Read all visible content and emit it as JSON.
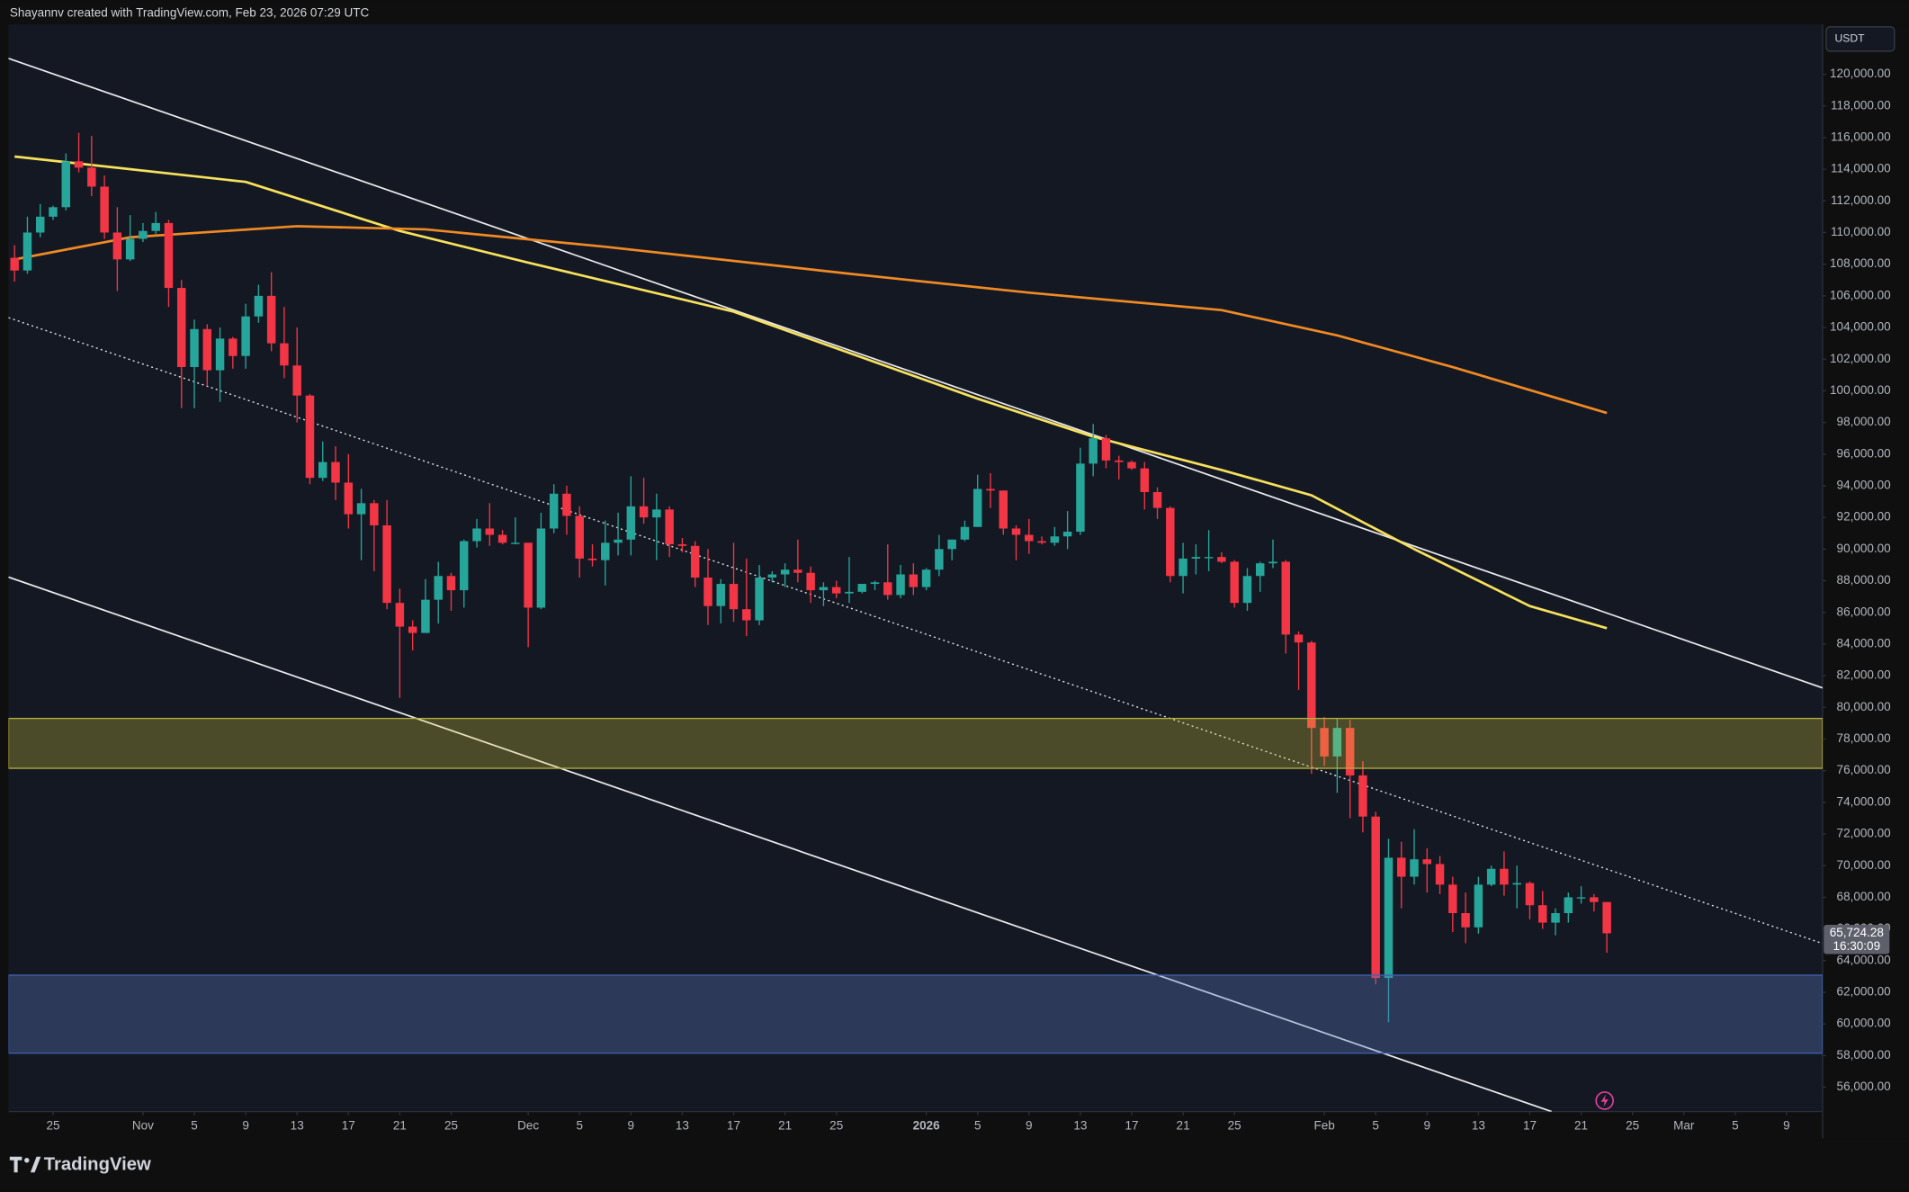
{
  "header": "Shayannv created with TradingView.com, Feb 23, 2026 07:29 UTC",
  "footer": "TradingView",
  "chart_data": {
    "type": "candlestick",
    "currency": "USDT",
    "up_color": "#26a69a",
    "down_color": "#f23645",
    "ylim": [
      54460,
      123150
    ],
    "xlim": [
      -0.47,
      140.8
    ],
    "yticks": [
      {
        "value": 56000,
        "label": "56,000.00"
      },
      {
        "value": 58000,
        "label": "58,000.00"
      },
      {
        "value": 60000,
        "label": "60,000.00"
      },
      {
        "value": 62000,
        "label": "62,000.00"
      },
      {
        "value": 64000,
        "label": "64,000.00"
      },
      {
        "value": 66000,
        "label": "66,000.00"
      },
      {
        "value": 68000,
        "label": "68,000.00"
      },
      {
        "value": 70000,
        "label": "70,000.00"
      },
      {
        "value": 72000,
        "label": "72,000.00"
      },
      {
        "value": 74000,
        "label": "74,000.00"
      },
      {
        "value": 76000,
        "label": "76,000.00"
      },
      {
        "value": 78000,
        "label": "78,000.00"
      },
      {
        "value": 80000,
        "label": "80,000.00"
      },
      {
        "value": 82000,
        "label": "82,000.00"
      },
      {
        "value": 84000,
        "label": "84,000.00"
      },
      {
        "value": 86000,
        "label": "86,000.00"
      },
      {
        "value": 88000,
        "label": "88,000.00"
      },
      {
        "value": 90000,
        "label": "90,000.00"
      },
      {
        "value": 92000,
        "label": "92,000.00"
      },
      {
        "value": 94000,
        "label": "94,000.00"
      },
      {
        "value": 96000,
        "label": "96,000.00"
      },
      {
        "value": 98000,
        "label": "98,000.00"
      },
      {
        "value": 100000,
        "label": "100,000.00"
      },
      {
        "value": 102000,
        "label": "102,000.00"
      },
      {
        "value": 104000,
        "label": "104,000.00"
      },
      {
        "value": 106000,
        "label": "106,000.00"
      },
      {
        "value": 108000,
        "label": "108,000.00"
      },
      {
        "value": 110000,
        "label": "110,000.00"
      },
      {
        "value": 112000,
        "label": "112,000.00"
      },
      {
        "value": 114000,
        "label": "114,000.00"
      },
      {
        "value": 116000,
        "label": "116,000.00"
      },
      {
        "value": 118000,
        "label": "118,000.00"
      },
      {
        "value": 120000,
        "label": "120,000.00"
      }
    ],
    "xticks": [
      {
        "value": 3,
        "label": "25"
      },
      {
        "value": 10,
        "label": "Nov"
      },
      {
        "value": 14,
        "label": "5"
      },
      {
        "value": 18,
        "label": "9"
      },
      {
        "value": 22,
        "label": "13"
      },
      {
        "value": 26,
        "label": "17"
      },
      {
        "value": 30,
        "label": "21"
      },
      {
        "value": 34,
        "label": "25"
      },
      {
        "value": 40,
        "label": "Dec"
      },
      {
        "value": 44,
        "label": "5"
      },
      {
        "value": 48,
        "label": "9"
      },
      {
        "value": 52,
        "label": "13"
      },
      {
        "value": 56,
        "label": "17"
      },
      {
        "value": 60,
        "label": "21"
      },
      {
        "value": 64,
        "label": "25"
      },
      {
        "value": 71,
        "label": "2026"
      },
      {
        "value": 75,
        "label": "5"
      },
      {
        "value": 79,
        "label": "9"
      },
      {
        "value": 83,
        "label": "13"
      },
      {
        "value": 87,
        "label": "17"
      },
      {
        "value": 91,
        "label": "21"
      },
      {
        "value": 95,
        "label": "25"
      },
      {
        "value": 102,
        "label": "Feb"
      },
      {
        "value": 106,
        "label": "5"
      },
      {
        "value": 110,
        "label": "9"
      },
      {
        "value": 114,
        "label": "13"
      },
      {
        "value": 118,
        "label": "17"
      },
      {
        "value": 122,
        "label": "21"
      },
      {
        "value": 126,
        "label": "25"
      },
      {
        "value": 130,
        "label": "Mar"
      },
      {
        "value": 134,
        "label": "5"
      },
      {
        "value": 138,
        "label": "9"
      }
    ],
    "open": [
      108400,
      107600,
      110000,
      111000,
      111600,
      114500,
      114100,
      112900,
      110000,
      108300,
      109600,
      110100,
      110600,
      106500,
      101500,
      103900,
      101300,
      103300,
      102200,
      104700,
      106000,
      103000,
      101600,
      99700,
      94500,
      95500,
      94200,
      92200,
      92900,
      91500,
      86600,
      85100,
      84700,
      86800,
      88300,
      87400,
      90500,
      91300,
      90900,
      90400,
      90400,
      86300,
      91300,
      93500,
      92100,
      89400,
      89300,
      90400,
      90600,
      92700,
      92000,
      92500,
      90300,
      90200,
      88200,
      86400,
      87800,
      86200,
      85500,
      88200,
      88400,
      88700,
      88500,
      87400,
      87600,
      87200,
      87300,
      87800,
      87900,
      87100,
      88400,
      87600,
      88700,
      90000,
      90600,
      91400,
      93800,
      93700,
      91300,
      90900,
      90500,
      90400,
      90800,
      91100,
      95400,
      97000,
      95600,
      95500,
      95100,
      93600,
      92600,
      88300,
      89400,
      89500,
      89500,
      89200,
      86600,
      88300,
      89100,
      89200,
      84600,
      84100,
      78700,
      76900,
      78700,
      75700,
      73100,
      62900,
      70500,
      69300,
      70400,
      70100,
      68800,
      67000,
      66100,
      68800,
      69800,
      68800,
      68900,
      67500,
      66400,
      67000,
      68000,
      68000,
      67700
    ],
    "high": [
      109200,
      111000,
      111800,
      111700,
      115000,
      116300,
      116100,
      113600,
      111600,
      111100,
      110600,
      111300,
      110800,
      107000,
      104500,
      104200,
      104000,
      103400,
      105500,
      106700,
      107500,
      105300,
      104000,
      99800,
      96800,
      96500,
      96000,
      93800,
      93100,
      93100,
      87500,
      85500,
      88100,
      89200,
      88500,
      90600,
      91900,
      92900,
      91200,
      92000,
      90400,
      92300,
      94100,
      94000,
      92700,
      90300,
      91800,
      92300,
      94600,
      94500,
      93500,
      92700,
      90700,
      90500,
      90000,
      88100,
      90400,
      89400,
      89000,
      88600,
      89100,
      90600,
      88900,
      87900,
      88000,
      89500,
      87800,
      88000,
      90300,
      89000,
      89100,
      88800,
      90900,
      90600,
      91800,
      94700,
      94800,
      93700,
      91500,
      91900,
      90800,
      91400,
      92400,
      96400,
      97900,
      97200,
      95900,
      95600,
      95500,
      93900,
      92700,
      90400,
      90300,
      91200,
      89800,
      89300,
      88800,
      89200,
      90600,
      89300,
      84800,
      84200,
      79400,
      79300,
      79200,
      76600,
      73400,
      71700,
      71500,
      72300,
      71100,
      70600,
      69300,
      68300,
      69300,
      70000,
      70900,
      70000,
      69000,
      68400,
      67300,
      68300,
      68700,
      68200,
      67700
    ],
    "low": [
      106900,
      107400,
      109700,
      110800,
      111400,
      113800,
      112300,
      109600,
      106300,
      108200,
      109400,
      109900,
      105300,
      98900,
      98900,
      100300,
      99300,
      101400,
      101400,
      104300,
      102500,
      100800,
      98000,
      94100,
      94300,
      93100,
      91300,
      89300,
      88600,
      86200,
      80600,
      83600,
      84700,
      85300,
      86100,
      86300,
      90100,
      90200,
      90300,
      90300,
      83800,
      86200,
      91000,
      90900,
      88200,
      88900,
      87700,
      89600,
      89600,
      91600,
      89300,
      89500,
      89800,
      87600,
      85200,
      85300,
      85400,
      84500,
      85200,
      87900,
      87600,
      87900,
      86600,
      86400,
      86900,
      86600,
      87200,
      87400,
      86800,
      86900,
      87100,
      87400,
      88300,
      89300,
      90500,
      91400,
      92600,
      90900,
      89300,
      89700,
      90300,
      90200,
      90000,
      90900,
      94600,
      95100,
      94400,
      95000,
      92500,
      91900,
      87900,
      87200,
      88400,
      88600,
      89100,
      86300,
      86100,
      87300,
      88800,
      83400,
      81100,
      75800,
      76300,
      74600,
      73000,
      72100,
      62500,
      60100,
      67300,
      68800,
      68300,
      68200,
      65800,
      65100,
      65700,
      68700,
      68100,
      67300,
      66600,
      66000,
      65600,
      66400,
      67600,
      67100,
      64500
    ],
    "close": [
      107600,
      110000,
      111000,
      111600,
      114500,
      114100,
      112900,
      110000,
      108300,
      109600,
      110100,
      110600,
      106500,
      101500,
      103900,
      101300,
      103300,
      102200,
      104700,
      106000,
      103000,
      101600,
      99700,
      94500,
      95500,
      94200,
      92200,
      92900,
      91500,
      86600,
      85100,
      84700,
      86800,
      88300,
      87400,
      90500,
      91300,
      90900,
      90400,
      90400,
      86300,
      91300,
      93500,
      92100,
      89400,
      89300,
      90400,
      90600,
      92700,
      92000,
      92500,
      90300,
      90200,
      88200,
      86400,
      87800,
      86200,
      85500,
      88200,
      88400,
      88700,
      88500,
      87400,
      87600,
      87200,
      87300,
      87800,
      87900,
      87100,
      88400,
      87600,
      88700,
      90000,
      90600,
      91400,
      93800,
      93700,
      91300,
      90900,
      90500,
      90400,
      90800,
      91100,
      95400,
      97000,
      95600,
      95500,
      95100,
      93600,
      92600,
      88300,
      89400,
      89500,
      89500,
      89200,
      86600,
      88300,
      89100,
      89200,
      84600,
      84100,
      78700,
      76900,
      78700,
      75700,
      73100,
      62900,
      70500,
      69300,
      70400,
      70100,
      68800,
      67000,
      66100,
      68800,
      69800,
      68800,
      68900,
      67500,
      66400,
      67000,
      68000,
      68000,
      67700,
      65724.28
    ],
    "last_label": "65,724.28",
    "countdown": "16:30:09",
    "series": [
      {
        "color": "#f7e15c",
        "x": [
          0,
          18,
          30,
          40,
          56,
          75,
          84,
          94,
          101,
          109,
          118,
          124
        ],
        "values": [
          114800,
          113200,
          110100,
          108100,
          105000,
          99500,
          97100,
          95000,
          93400,
          90000,
          86400,
          85000
        ]
      },
      {
        "color": "#f08a24",
        "x": [
          0,
          9,
          22,
          32,
          46,
          65,
          79,
          94,
          103,
          112,
          124
        ],
        "values": [
          108300,
          109700,
          110400,
          110200,
          109100,
          107400,
          106200,
          105100,
          103500,
          101500,
          98600
        ]
      }
    ],
    "trendlines": [
      {
        "x": [
          -0.47,
          140.8
        ],
        "y": [
          121000,
          81230
        ],
        "dotted": false
      },
      {
        "x": [
          -0.47,
          119.7
        ],
        "y": [
          88230,
          54460
        ],
        "dotted": false
      },
      {
        "x": [
          -0.47,
          140.8
        ],
        "y": [
          104620,
          65080
        ],
        "dotted": true
      }
    ],
    "zones": [
      {
        "from": 76150,
        "to": 79300,
        "fill": "rgba(220,210,60,0.28)",
        "stroke": "#b3ad3c"
      },
      {
        "from": 58150,
        "to": 63080,
        "fill": "rgba(90,120,190,0.35)",
        "stroke": "#3f5fb0"
      }
    ]
  }
}
